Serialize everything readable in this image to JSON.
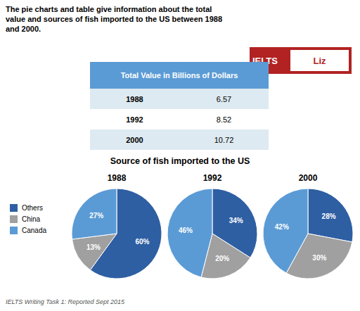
{
  "title": "The pie charts and table give information about the total\nvalue and sources of fish imported to the US between 1988\nand 2000.",
  "subtitle": "Source of fish imported to the US",
  "annotations": [
    {
      "text": "IELTS",
      "color": "#B22222"
    },
    {
      "text": "Liz",
      "color": "#B22222"
    },
    {
      "text": "IELTS Writing Task 1: Reported Sept 2015"
    }
  ],
  "chart_data": [
    {
      "type": "table",
      "title": "Total Value in Billions of Dollars",
      "categories": [
        "1988",
        "1992",
        "2000"
      ],
      "values": [
        6.57,
        8.52,
        10.72
      ],
      "color": "#5B9BD5",
      "colors": [
        "#DEEAF1",
        "#ffffff",
        "#DEEAF1"
      ]
    },
    {
      "type": "pie",
      "title": "1988",
      "categories": [
        "Others",
        "China",
        "Canada"
      ],
      "values": [
        60,
        13,
        27
      ],
      "value_labels": [
        "60%",
        "13%",
        "27%"
      ],
      "colors": [
        "#2E5FA3",
        "#A0A0A0",
        "#5B9BD5"
      ],
      "data_labels": true,
      "legend": "left"
    },
    {
      "type": "pie",
      "title": "1992",
      "categories": [
        "Others",
        "China",
        "Canada"
      ],
      "values": [
        34,
        20,
        46
      ],
      "value_labels": [
        "34%",
        "20%",
        "46%"
      ],
      "colors": [
        "#2E5FA3",
        "#A0A0A0",
        "#5B9BD5"
      ],
      "data_labels": true
    },
    {
      "type": "pie",
      "title": "2000",
      "categories": [
        "Others",
        "China",
        "Canada"
      ],
      "values": [
        28,
        30,
        42
      ],
      "value_labels": [
        "28%",
        "30%",
        "42%"
      ],
      "colors": [
        "#2E5FA3",
        "#A0A0A0",
        "#5B9BD5"
      ],
      "data_labels": true
    }
  ]
}
